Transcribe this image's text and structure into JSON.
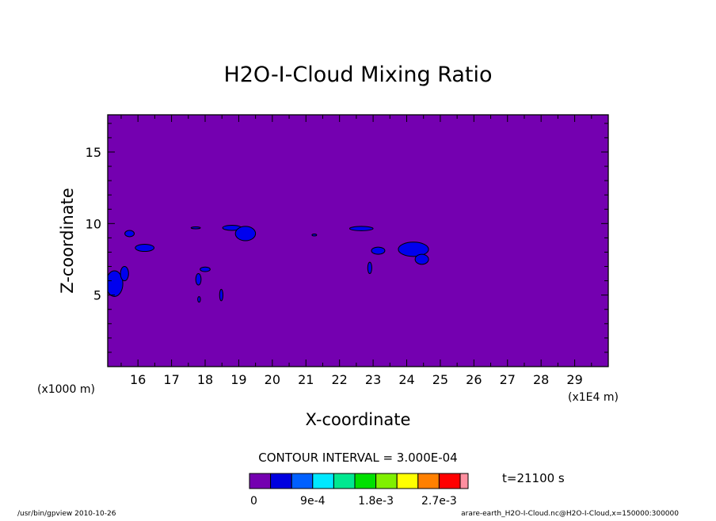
{
  "chart_data": {
    "type": "heatmap",
    "title": "H2O-I-Cloud Mixing Ratio",
    "xlabel": "X-coordinate",
    "ylabel": "Z-coordinate",
    "x_unit_left": "(x1000 m)",
    "x_unit_right": "(x1E4 m)",
    "xlim": [
      15.1,
      30.0
    ],
    "ylim": [
      0.0,
      17.6
    ],
    "x_ticks": [
      "16",
      "17",
      "18",
      "19",
      "20",
      "21",
      "22",
      "23",
      "24",
      "25",
      "26",
      "27",
      "28",
      "29"
    ],
    "y_ticks": [
      "5",
      "10",
      "15"
    ],
    "contour_interval": "CONTOUR INTERVAL = 3.000E-04",
    "time_label": "t=21100 s",
    "background_level_color": "#7400b0",
    "cloud_level_color": "#0000ee",
    "colorbar": {
      "colors": [
        "#7400b0",
        "#0000e0",
        "#0060ff",
        "#00e8ff",
        "#00e890",
        "#00e000",
        "#80f000",
        "#ffff00",
        "#ff8000",
        "#ff0000",
        "#ff8fa0"
      ],
      "labels": [
        "0",
        "9e-4",
        "1.8e-3",
        "2.7e-3"
      ]
    },
    "cloud_regions": [
      {
        "cx": 15.3,
        "cz": 5.8,
        "rx": 0.25,
        "rz": 0.9
      },
      {
        "cx": 15.6,
        "cz": 6.5,
        "rx": 0.12,
        "rz": 0.5
      },
      {
        "cx": 15.75,
        "cz": 9.3,
        "rx": 0.14,
        "rz": 0.22
      },
      {
        "cx": 16.2,
        "cz": 8.3,
        "rx": 0.28,
        "rz": 0.25
      },
      {
        "cx": 17.72,
        "cz": 9.7,
        "rx": 0.14,
        "rz": 0.07
      },
      {
        "cx": 17.8,
        "cz": 6.1,
        "rx": 0.08,
        "rz": 0.4
      },
      {
        "cx": 17.82,
        "cz": 4.7,
        "rx": 0.04,
        "rz": 0.2
      },
      {
        "cx": 18.0,
        "cz": 6.8,
        "rx": 0.15,
        "rz": 0.16
      },
      {
        "cx": 18.48,
        "cz": 5.0,
        "rx": 0.05,
        "rz": 0.4
      },
      {
        "cx": 18.8,
        "cz": 9.7,
        "rx": 0.28,
        "rz": 0.18
      },
      {
        "cx": 19.2,
        "cz": 9.3,
        "rx": 0.3,
        "rz": 0.5
      },
      {
        "cx": 21.25,
        "cz": 9.2,
        "rx": 0.07,
        "rz": 0.07
      },
      {
        "cx": 22.65,
        "cz": 9.65,
        "rx": 0.35,
        "rz": 0.15
      },
      {
        "cx": 22.9,
        "cz": 6.9,
        "rx": 0.06,
        "rz": 0.4
      },
      {
        "cx": 23.15,
        "cz": 8.1,
        "rx": 0.2,
        "rz": 0.25
      },
      {
        "cx": 24.2,
        "cz": 8.2,
        "rx": 0.45,
        "rz": 0.5
      },
      {
        "cx": 24.45,
        "cz": 7.5,
        "rx": 0.2,
        "rz": 0.35
      }
    ]
  },
  "footer": {
    "left": "/usr/bin/gpview   2010-10-26",
    "right": "arare-earth_H2O-I-Cloud.nc@H2O-I-Cloud,x=150000:300000"
  }
}
